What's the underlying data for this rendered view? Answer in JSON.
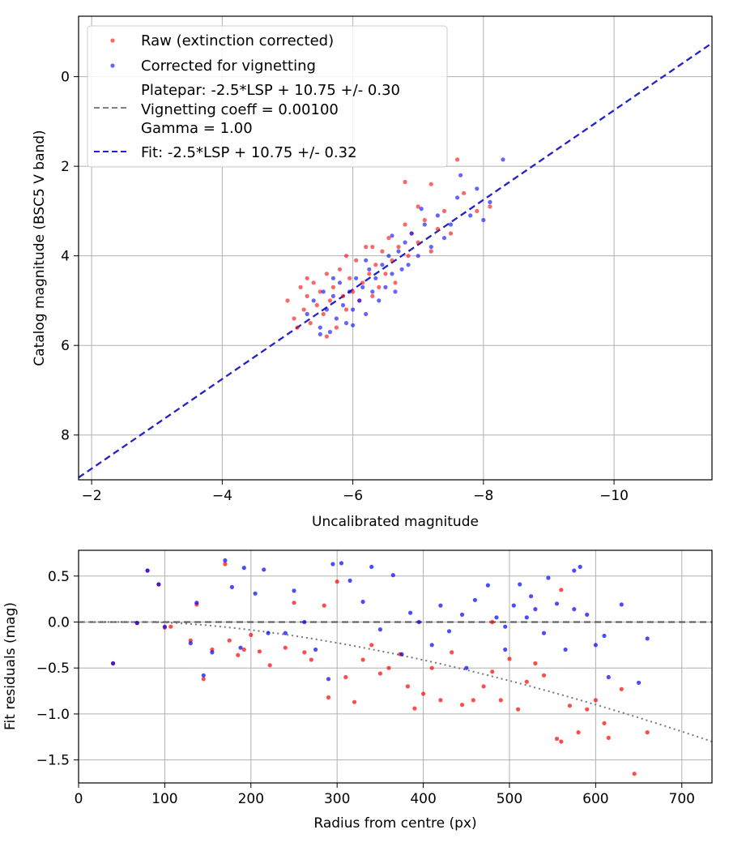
{
  "chart_data": [
    {
      "type": "scatter",
      "xlabel": "Uncalibrated magnitude",
      "ylabel": "Catalog magnitude (BSC5 V band)",
      "xlim": [
        -1.8,
        -11.5
      ],
      "ylim": [
        9.0,
        -1.35
      ],
      "x_ticks": [
        -2,
        -4,
        -6,
        -8,
        -10
      ],
      "x_tick_labels": [
        "−2",
        "−4",
        "−6",
        "−8",
        "−10"
      ],
      "y_ticks": [
        0,
        2,
        4,
        6,
        8
      ],
      "y_tick_labels": [
        "0",
        "2",
        "4",
        "6",
        "8"
      ],
      "grid": true,
      "legend_position": "top-left",
      "legend": [
        {
          "label": "Raw (extinction corrected)",
          "kind": "marker",
          "color": "#ff0000"
        },
        {
          "label": "Corrected for vignetting",
          "kind": "marker",
          "color": "#0000ff"
        },
        {
          "label_lines": [
            "Platepar: -2.5*LSP + 10.75 +/- 0.30",
            "Vignetting coeff = 0.00100",
            "Gamma = 1.00"
          ],
          "kind": "dashed",
          "color": "#808080"
        },
        {
          "label": "Fit: -2.5*LSP + 10.75 +/- 0.32",
          "kind": "dashed",
          "color": "#2222cc"
        }
      ],
      "lines": [
        {
          "name": "Platepar",
          "slope": 1,
          "intercept": 10.75,
          "color": "#808080"
        },
        {
          "name": "Fit",
          "slope": 1,
          "intercept": 10.75,
          "color": "#2222cc"
        }
      ],
      "series": [
        {
          "name": "Raw (extinction corrected)",
          "color": "#ff0000",
          "points": [
            [
              -5.0,
              5.0
            ],
            [
              -5.1,
              5.4
            ],
            [
              -5.2,
              4.7
            ],
            [
              -5.25,
              5.2
            ],
            [
              -5.3,
              4.9
            ],
            [
              -5.35,
              5.5
            ],
            [
              -5.4,
              4.6
            ],
            [
              -5.45,
              5.1
            ],
            [
              -5.5,
              4.8
            ],
            [
              -5.55,
              5.3
            ],
            [
              -5.6,
              4.4
            ],
            [
              -5.65,
              5.0
            ],
            [
              -5.7,
              4.7
            ],
            [
              -5.75,
              5.6
            ],
            [
              -5.8,
              4.3
            ],
            [
              -5.85,
              4.9
            ],
            [
              -5.9,
              5.2
            ],
            [
              -5.95,
              4.5
            ],
            [
              -6.0,
              4.8
            ],
            [
              -6.05,
              4.1
            ],
            [
              -6.1,
              5.0
            ],
            [
              -6.15,
              4.6
            ],
            [
              -6.2,
              3.8
            ],
            [
              -6.25,
              4.4
            ],
            [
              -6.3,
              4.9
            ],
            [
              -6.35,
              4.2
            ],
            [
              -6.4,
              4.7
            ],
            [
              -6.45,
              3.9
            ],
            [
              -6.5,
              4.4
            ],
            [
              -6.55,
              3.6
            ],
            [
              -6.6,
              4.1
            ],
            [
              -6.65,
              4.6
            ],
            [
              -6.7,
              3.8
            ],
            [
              -6.8,
              3.3
            ],
            [
              -6.85,
              4.0
            ],
            [
              -6.9,
              3.5
            ],
            [
              -7.0,
              3.7
            ],
            [
              -7.1,
              3.2
            ],
            [
              -7.2,
              3.9
            ],
            [
              -7.3,
              3.4
            ],
            [
              -7.4,
              3.0
            ],
            [
              -7.5,
              3.5
            ],
            [
              -7.6,
              1.85
            ],
            [
              -7.7,
              2.6
            ],
            [
              -7.9,
              3.0
            ],
            [
              -8.1,
              2.9
            ],
            [
              -5.15,
              5.6
            ],
            [
              -5.6,
              5.8
            ],
            [
              -6.8,
              2.35
            ],
            [
              -7.2,
              2.4
            ],
            [
              -5.3,
              4.5
            ],
            [
              -5.9,
              4.0
            ],
            [
              -6.3,
              3.8
            ],
            [
              -7.0,
              2.9
            ]
          ]
        },
        {
          "name": "Corrected for vignetting",
          "color": "#0000ff",
          "points": [
            [
              -5.3,
              5.3
            ],
            [
              -5.4,
              5.0
            ],
            [
              -5.5,
              5.6
            ],
            [
              -5.55,
              4.8
            ],
            [
              -5.6,
              5.2
            ],
            [
              -5.65,
              5.7
            ],
            [
              -5.7,
              4.9
            ],
            [
              -5.75,
              5.4
            ],
            [
              -5.8,
              4.6
            ],
            [
              -5.85,
              5.1
            ],
            [
              -5.9,
              5.5
            ],
            [
              -5.95,
              4.8
            ],
            [
              -6.0,
              5.2
            ],
            [
              -6.05,
              4.5
            ],
            [
              -6.1,
              5.0
            ],
            [
              -6.15,
              4.7
            ],
            [
              -6.2,
              5.3
            ],
            [
              -6.25,
              4.3
            ],
            [
              -6.3,
              4.8
            ],
            [
              -6.35,
              4.5
            ],
            [
              -6.4,
              5.0
            ],
            [
              -6.45,
              4.2
            ],
            [
              -6.5,
              4.7
            ],
            [
              -6.55,
              4.0
            ],
            [
              -6.6,
              4.4
            ],
            [
              -6.65,
              4.8
            ],
            [
              -6.7,
              3.9
            ],
            [
              -6.75,
              4.3
            ],
            [
              -6.8,
              3.7
            ],
            [
              -6.85,
              4.2
            ],
            [
              -6.9,
              3.5
            ],
            [
              -7.0,
              4.0
            ],
            [
              -7.1,
              3.3
            ],
            [
              -7.2,
              3.8
            ],
            [
              -7.3,
              3.1
            ],
            [
              -7.4,
              3.6
            ],
            [
              -7.5,
              3.3
            ],
            [
              -7.6,
              2.7
            ],
            [
              -7.8,
              3.1
            ],
            [
              -7.9,
              2.5
            ],
            [
              -8.0,
              3.2
            ],
            [
              -8.3,
              1.85
            ],
            [
              -7.65,
              2.2
            ],
            [
              -8.1,
              2.8
            ],
            [
              -5.5,
              5.75
            ],
            [
              -6.0,
              5.55
            ],
            [
              -6.6,
              3.55
            ],
            [
              -7.05,
              2.95
            ],
            [
              -5.7,
              4.5
            ],
            [
              -6.2,
              4.1
            ]
          ]
        }
      ]
    },
    {
      "type": "scatter",
      "xlabel": "Radius from centre (px)",
      "ylabel": "Fit residuals (mag)",
      "xlim": [
        0,
        735
      ],
      "ylim": [
        -1.75,
        0.78
      ],
      "x_ticks": [
        0,
        100,
        200,
        300,
        400,
        500,
        600,
        700
      ],
      "x_tick_labels": [
        "0",
        "100",
        "200",
        "300",
        "400",
        "500",
        "600",
        "700"
      ],
      "y_ticks": [
        0.5,
        0.0,
        -0.5,
        -1.0,
        -1.5
      ],
      "y_tick_labels": [
        "0.5",
        "0.0",
        "−0.5",
        "−1.0",
        "−1.5"
      ],
      "grid": true,
      "lines": [
        {
          "name": "zero",
          "style": "dashed",
          "color": "#555555",
          "value": 0.0
        },
        {
          "name": "vignetting model",
          "style": "dotted",
          "color": "#777777",
          "coeff": 0.001
        }
      ],
      "series": [
        {
          "name": "Raw (extinction corrected)",
          "color": "#ff0000",
          "points": [
            [
              40,
              -0.45
            ],
            [
              68,
              -0.01
            ],
            [
              80,
              0.56
            ],
            [
              93,
              0.41
            ],
            [
              100,
              -0.06
            ],
            [
              107,
              -0.05
            ],
            [
              130,
              -0.2
            ],
            [
              137,
              0.19
            ],
            [
              145,
              -0.62
            ],
            [
              155,
              -0.3
            ],
            [
              170,
              0.63
            ],
            [
              175,
              -0.2
            ],
            [
              185,
              -0.36
            ],
            [
              192,
              -0.3
            ],
            [
              200,
              -0.14
            ],
            [
              210,
              -0.32
            ],
            [
              222,
              -0.47
            ],
            [
              240,
              -0.28
            ],
            [
              250,
              0.21
            ],
            [
              262,
              -0.33
            ],
            [
              270,
              -0.41
            ],
            [
              285,
              0.18
            ],
            [
              290,
              -0.82
            ],
            [
              300,
              0.44
            ],
            [
              310,
              -0.6
            ],
            [
              320,
              -0.87
            ],
            [
              330,
              -0.41
            ],
            [
              340,
              -0.25
            ],
            [
              350,
              -0.56
            ],
            [
              360,
              -0.5
            ],
            [
              373,
              -0.35
            ],
            [
              382,
              -0.7
            ],
            [
              390,
              -0.94
            ],
            [
              400,
              -0.78
            ],
            [
              410,
              -0.5
            ],
            [
              420,
              -0.85
            ],
            [
              433,
              -0.33
            ],
            [
              445,
              -0.9
            ],
            [
              458,
              -0.85
            ],
            [
              470,
              -0.7
            ],
            [
              480,
              -0.54
            ],
            [
              490,
              -0.85
            ],
            [
              500,
              -0.4
            ],
            [
              510,
              -0.95
            ],
            [
              520,
              -0.65
            ],
            [
              530,
              -0.45
            ],
            [
              540,
              -0.58
            ],
            [
              555,
              -1.27
            ],
            [
              560,
              -1.3
            ],
            [
              570,
              -0.91
            ],
            [
              580,
              -1.2
            ],
            [
              590,
              -0.95
            ],
            [
              600,
              -0.85
            ],
            [
              610,
              -1.1
            ],
            [
              615,
              -1.26
            ],
            [
              630,
              -0.73
            ],
            [
              645,
              -1.65
            ],
            [
              660,
              -1.2
            ],
            [
              480,
              0.0
            ],
            [
              560,
              0.35
            ]
          ]
        },
        {
          "name": "Corrected for vignetting",
          "color": "#0000ff",
          "points": [
            [
              40,
              -0.45
            ],
            [
              68,
              -0.01
            ],
            [
              80,
              0.56
            ],
            [
              93,
              0.41
            ],
            [
              100,
              -0.05
            ],
            [
              130,
              -0.23
            ],
            [
              137,
              0.21
            ],
            [
              145,
              -0.58
            ],
            [
              155,
              -0.33
            ],
            [
              170,
              0.67
            ],
            [
              178,
              0.38
            ],
            [
              188,
              -0.28
            ],
            [
              192,
              0.59
            ],
            [
              205,
              0.31
            ],
            [
              215,
              0.57
            ],
            [
              220,
              -0.12
            ],
            [
              240,
              -0.12
            ],
            [
              250,
              0.34
            ],
            [
              262,
              0.0
            ],
            [
              275,
              -0.3
            ],
            [
              290,
              -0.62
            ],
            [
              295,
              0.63
            ],
            [
              305,
              0.64
            ],
            [
              315,
              0.45
            ],
            [
              330,
              0.22
            ],
            [
              340,
              0.6
            ],
            [
              350,
              -0.08
            ],
            [
              365,
              0.51
            ],
            [
              375,
              -0.35
            ],
            [
              385,
              0.1
            ],
            [
              395,
              0.0
            ],
            [
              410,
              -0.25
            ],
            [
              420,
              0.18
            ],
            [
              430,
              -0.1
            ],
            [
              445,
              0.08
            ],
            [
              450,
              -0.5
            ],
            [
              460,
              0.24
            ],
            [
              475,
              0.4
            ],
            [
              485,
              0.05
            ],
            [
              495,
              -0.3
            ],
            [
              505,
              0.18
            ],
            [
              512,
              0.41
            ],
            [
              520,
              0.05
            ],
            [
              530,
              0.14
            ],
            [
              540,
              -0.12
            ],
            [
              555,
              0.2
            ],
            [
              565,
              -0.3
            ],
            [
              575,
              0.14
            ],
            [
              582,
              0.6
            ],
            [
              590,
              0.08
            ],
            [
              600,
              -0.25
            ],
            [
              615,
              -0.6
            ],
            [
              630,
              0.19
            ],
            [
              650,
              -0.66
            ],
            [
              660,
              -0.18
            ],
            [
              495,
              -0.05
            ],
            [
              525,
              0.28
            ],
            [
              545,
              0.48
            ],
            [
              575,
              0.56
            ],
            [
              610,
              -0.15
            ]
          ]
        }
      ]
    }
  ]
}
